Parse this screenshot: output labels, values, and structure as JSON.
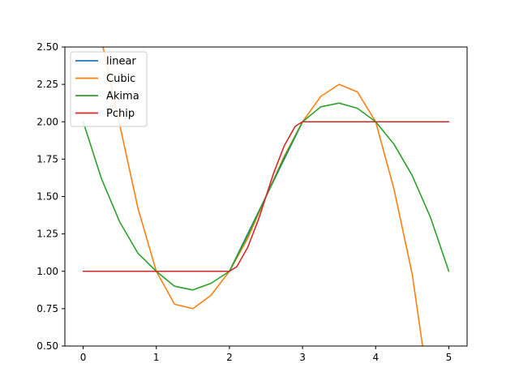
{
  "chart_data": {
    "type": "line",
    "title": "",
    "xlabel": "",
    "ylabel": "",
    "xlim": [
      -0.25,
      5.25
    ],
    "ylim": [
      0.5,
      2.5
    ],
    "grid": false,
    "legend_position": "top-left",
    "x_ticks": [
      "0",
      "1",
      "2",
      "3",
      "4",
      "5"
    ],
    "y_ticks": [
      "0.50",
      "0.75",
      "1.00",
      "1.25",
      "1.50",
      "1.75",
      "2.00",
      "2.25",
      "2.50"
    ],
    "knots": {
      "x": [
        0,
        1,
        2,
        3,
        4,
        5
      ],
      "y": [
        1,
        1,
        1,
        2,
        2,
        2
      ]
    },
    "series": [
      {
        "name": "linear",
        "color": "#1f77b4",
        "x": [
          0,
          1,
          2,
          3,
          4,
          5
        ],
        "y": [
          1,
          1,
          1,
          2,
          2,
          2
        ]
      },
      {
        "name": "Cubic",
        "color": "#ff7f0e",
        "x": [
          0.2,
          0.25,
          0.5,
          0.75,
          1.0,
          1.25,
          1.5,
          1.75,
          2.0,
          2.25,
          2.5,
          2.75,
          3.0,
          3.25,
          3.5,
          3.75,
          4.0,
          4.25,
          4.5,
          4.65
        ],
        "y": [
          2.67,
          2.55,
          1.98,
          1.42,
          1.0,
          0.78,
          0.75,
          0.84,
          1.0,
          1.22,
          1.5,
          1.77,
          2.0,
          2.17,
          2.25,
          2.2,
          2.0,
          1.55,
          0.98,
          0.47
        ]
      },
      {
        "name": "Akima",
        "color": "#2ca02c",
        "x": [
          0,
          0.25,
          0.5,
          0.75,
          1.0,
          1.25,
          1.5,
          1.75,
          2.0,
          2.25,
          2.5,
          2.75,
          3.0,
          3.25,
          3.5,
          3.75,
          4.0,
          4.25,
          4.5,
          4.75,
          5.0
        ],
        "y": [
          2.0,
          1.62,
          1.33,
          1.12,
          1.0,
          0.9,
          0.875,
          0.92,
          1.0,
          1.24,
          1.5,
          1.76,
          2.0,
          2.1,
          2.125,
          2.09,
          2.0,
          1.85,
          1.64,
          1.36,
          1.0
        ]
      },
      {
        "name": "Pchip",
        "color": "#d62728",
        "x": [
          0,
          1,
          2,
          2.1,
          2.25,
          2.4,
          2.5,
          2.6,
          2.75,
          2.9,
          3,
          4,
          5
        ],
        "y": [
          1,
          1,
          1,
          1.03,
          1.16,
          1.35,
          1.5,
          1.65,
          1.84,
          1.97,
          2,
          2,
          2
        ]
      }
    ]
  }
}
